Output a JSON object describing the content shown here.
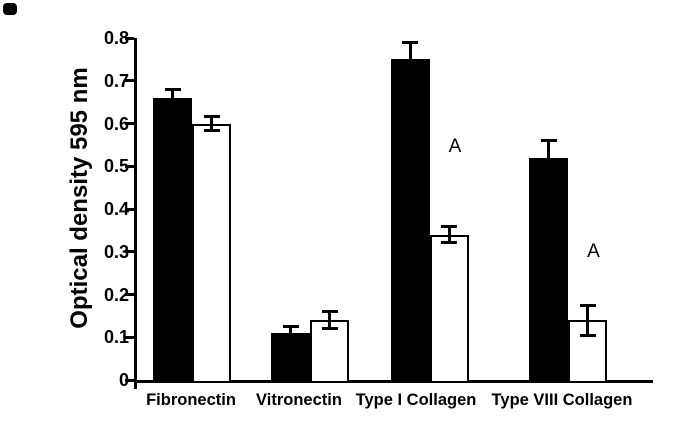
{
  "chart_data": {
    "type": "bar",
    "title": "",
    "xlabel": "",
    "ylabel": "Optical density 595 nm",
    "ylim": [
      0,
      0.8
    ],
    "yticks": [
      0,
      0.1,
      0.2,
      0.3,
      0.4,
      0.5,
      0.6,
      0.7,
      0.8
    ],
    "ytick_labels": [
      "0",
      "0.1",
      "0.2",
      "0.3",
      "0.4",
      "0.5",
      "0.6",
      "0.7",
      "0.8"
    ],
    "grid": false,
    "legend_position": "none",
    "colors": {
      "filled_bar": "#000000",
      "open_bar": "#ffffff",
      "outline": "#000000",
      "background": "#ffffff"
    },
    "categories": [
      "Fibronectin",
      "Vitronectin",
      "Type I Collagen",
      "Type VIII Collagen"
    ],
    "series": [
      {
        "name": "solid-black-bars",
        "fill": "#000000",
        "values": [
          0.66,
          0.11,
          0.75,
          0.52
        ],
        "errors": [
          0.02,
          0.015,
          0.04,
          0.04
        ]
      },
      {
        "name": "open-white-bars",
        "fill": "#ffffff",
        "values": [
          0.6,
          0.14,
          0.34,
          0.14
        ],
        "errors": [
          0.017,
          0.02,
          0.018,
          0.035
        ]
      }
    ],
    "error_bars": true,
    "annotations": [
      {
        "text": "A",
        "category": "Type I Collagen",
        "series": "open-white-bars",
        "y_value": 0.545
      },
      {
        "text": "A",
        "category": "Type VIII Collagen",
        "series": "open-white-bars",
        "y_value": 0.3
      }
    ]
  }
}
